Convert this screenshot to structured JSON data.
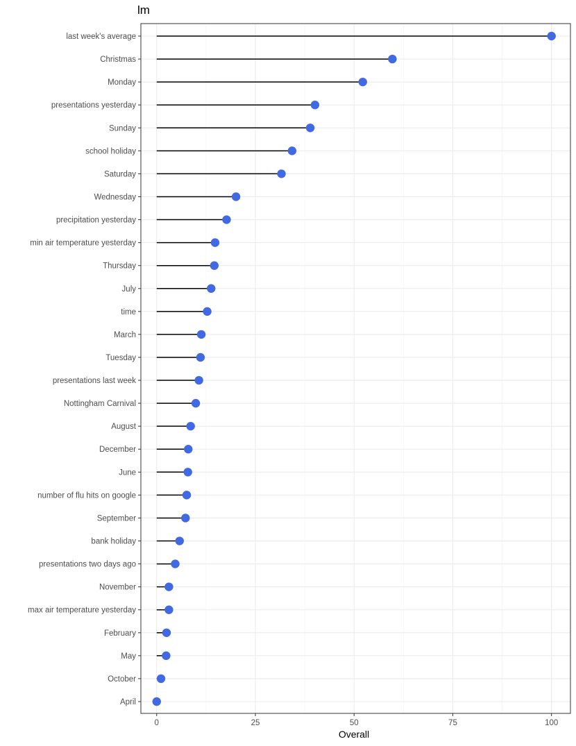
{
  "chart_data": {
    "type": "lollipop",
    "title": "lm",
    "xlabel": "Overall",
    "ylabel": "",
    "xlim": [
      -4,
      104.8
    ],
    "xticks": [
      0,
      25,
      50,
      75,
      100
    ],
    "grid": true,
    "point_color": "#4169E1",
    "stem_color": "#000000",
    "categories": [
      "last week's average",
      "Christmas",
      "Monday",
      "presentations yesterday",
      "Sunday",
      "school holiday",
      "Saturday",
      "Wednesday",
      "precipitation yesterday",
      "min air temperature yesterday",
      "Thursday",
      "July",
      "time",
      "March",
      "Tuesday",
      "presentations last week",
      "Nottingham Carnival",
      "August",
      "December",
      "June",
      "number of flu hits on google",
      "September",
      "bank holiday",
      "presentations two days ago",
      "November",
      "max air temperature yesterday",
      "February",
      "May",
      "October",
      "April"
    ],
    "values": [
      100,
      59.7,
      52.2,
      40.1,
      38.9,
      34.3,
      31.6,
      20.1,
      17.7,
      14.8,
      14.6,
      13.8,
      12.8,
      11.3,
      11.1,
      10.7,
      9.9,
      8.6,
      8.0,
      7.9,
      7.6,
      7.3,
      5.8,
      4.7,
      3.1,
      3.1,
      2.5,
      2.4,
      1.1,
      0
    ]
  }
}
